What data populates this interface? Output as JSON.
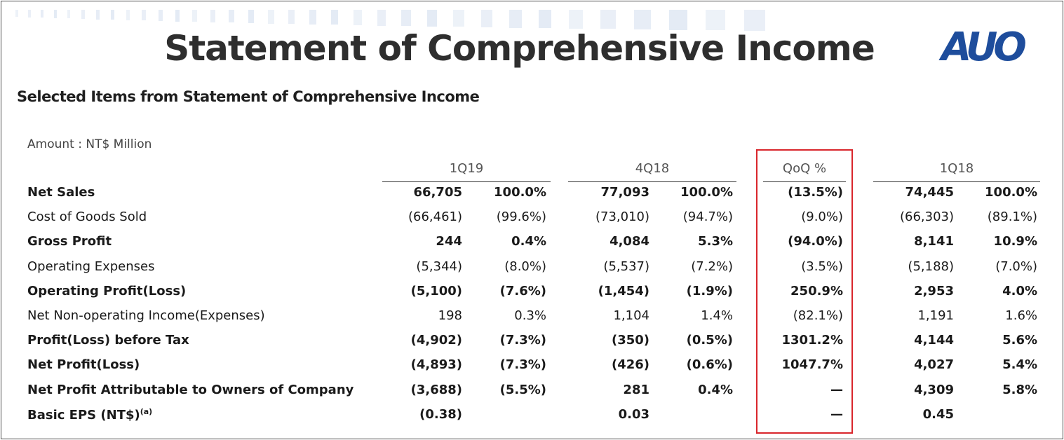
{
  "title": "Statement of Comprehensive Income",
  "logo_text": "AUO",
  "subtitle": "Selected Items from Statement of Comprehensive Income",
  "unit_note": "Amount : NT$ Million",
  "columns": {
    "q1": "1Q19",
    "q2": "4Q18",
    "qoq": "QoQ %",
    "q3": "1Q18"
  },
  "rows": [
    {
      "label": "Net Sales",
      "bold": true,
      "q1_amt": "66,705",
      "q1_pct": "100.0%",
      "q2_amt": "77,093",
      "q2_pct": "100.0%",
      "qoq": "(13.5%)",
      "q3_amt": "74,445",
      "q3_pct": "100.0%"
    },
    {
      "label": "Cost of Goods Sold",
      "bold": false,
      "q1_amt": "(66,461)",
      "q1_pct": "(99.6%)",
      "q2_amt": "(73,010)",
      "q2_pct": "(94.7%)",
      "qoq": "(9.0%)",
      "q3_amt": "(66,303)",
      "q3_pct": "(89.1%)"
    },
    {
      "label": "Gross Profit",
      "bold": true,
      "q1_amt": "244",
      "q1_pct": "0.4%",
      "q2_amt": "4,084",
      "q2_pct": "5.3%",
      "qoq": "(94.0%)",
      "q3_amt": "8,141",
      "q3_pct": "10.9%"
    },
    {
      "label": "Operating Expenses",
      "bold": false,
      "q1_amt": "(5,344)",
      "q1_pct": "(8.0%)",
      "q2_amt": "(5,537)",
      "q2_pct": "(7.2%)",
      "qoq": "(3.5%)",
      "q3_amt": "(5,188)",
      "q3_pct": "(7.0%)"
    },
    {
      "label": "Operating Profit(Loss)",
      "bold": true,
      "q1_amt": "(5,100)",
      "q1_pct": "(7.6%)",
      "q2_amt": "(1,454)",
      "q2_pct": "(1.9%)",
      "qoq": "250.9%",
      "q3_amt": "2,953",
      "q3_pct": "4.0%"
    },
    {
      "label": "Net Non-operating Income(Expenses)",
      "bold": false,
      "q1_amt": "198",
      "q1_pct": "0.3%",
      "q2_amt": "1,104",
      "q2_pct": "1.4%",
      "qoq": "(82.1%)",
      "q3_amt": "1,191",
      "q3_pct": "1.6%"
    },
    {
      "label": "Profit(Loss) before Tax",
      "bold": true,
      "q1_amt": "(4,902)",
      "q1_pct": "(7.3%)",
      "q2_amt": "(350)",
      "q2_pct": "(0.5%)",
      "qoq": "1301.2%",
      "q3_amt": "4,144",
      "q3_pct": "5.6%"
    },
    {
      "label": "Net Profit(Loss)",
      "bold": true,
      "q1_amt": "(4,893)",
      "q1_pct": "(7.3%)",
      "q2_amt": "(426)",
      "q2_pct": "(0.6%)",
      "qoq": "1047.7%",
      "q3_amt": "4,027",
      "q3_pct": "5.4%"
    },
    {
      "label": "Net Profit Attributable to Owners of Company",
      "bold": true,
      "q1_amt": "(3,688)",
      "q1_pct": "(5.5%)",
      "q2_amt": "281",
      "q2_pct": "0.4%",
      "qoq": "—",
      "q3_amt": "4,309",
      "q3_pct": "5.8%"
    },
    {
      "label": "Basic EPS (NT$)",
      "bold": true,
      "sup": "(a)",
      "q1_amt": "(0.38)",
      "q1_pct": "",
      "q2_amt": "0.03",
      "q2_pct": "",
      "qoq": "—",
      "q3_amt": "0.45",
      "q3_pct": ""
    }
  ]
}
